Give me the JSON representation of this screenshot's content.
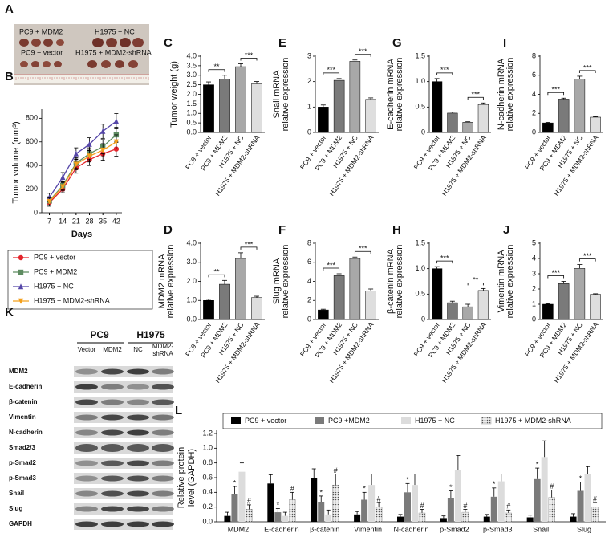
{
  "photo": {
    "panel": "A",
    "labels": [
      "PC9 + MDM2",
      "H1975 + NC",
      "PC9 + vector",
      "H1975 + MDM2-shRNA"
    ]
  },
  "blot": {
    "panel": "K",
    "groups": [
      "PC9",
      "H1975"
    ],
    "lanes": [
      [
        "Vector"
      ],
      [
        "MDM2"
      ],
      [
        "NC"
      ],
      [
        "MDM2-",
        "shRNA"
      ]
    ],
    "rows": [
      "MDM2",
      "E-cadherin",
      "β-catenin",
      "Vimentin",
      "N-cadherin",
      "Smad2/3",
      "p-Smad2",
      "p-Smad3",
      "Snail",
      "Slug",
      "GAPDH"
    ]
  },
  "chart_data": [
    {
      "type": "line",
      "panel": "B",
      "xlabel": "Days",
      "ylabel": "Tumor volume (mm³)",
      "x": [
        7,
        14,
        21,
        28,
        35,
        42
      ],
      "xlim": [
        3,
        45
      ],
      "xticks": [
        7,
        14,
        21,
        28,
        35,
        42
      ],
      "ylim": [
        0,
        850
      ],
      "yticks": [
        0,
        200,
        400,
        600,
        800
      ],
      "series": [
        {
          "name": "PC9 + vector",
          "color": "#e3242b",
          "marker": "circle",
          "values": [
            85,
            200,
            380,
            450,
            500,
            540
          ],
          "errors": [
            30,
            30,
            45,
            50,
            55,
            60
          ]
        },
        {
          "name": "PC9 + MDM2",
          "color": "#5e8c61",
          "marker": "square",
          "values": [
            100,
            230,
            420,
            500,
            560,
            660
          ],
          "errors": [
            35,
            35,
            45,
            50,
            60,
            65
          ]
        },
        {
          "name": "H1975 + NC",
          "color": "#5546a8",
          "marker": "triangle",
          "values": [
            130,
            300,
            500,
            580,
            690,
            775
          ],
          "errors": [
            35,
            40,
            50,
            55,
            60,
            65
          ]
        },
        {
          "name": "H1975 + MDM2-shRNA",
          "color": "#f4a01c",
          "marker": "triangle-down",
          "values": [
            95,
            220,
            410,
            480,
            530,
            600
          ],
          "errors": [
            30,
            35,
            45,
            50,
            55,
            60
          ]
        }
      ]
    },
    {
      "type": "bar",
      "panel": "C",
      "ylabel": [
        "Tumor weight (g)"
      ],
      "categories": [
        "PC9 + vector",
        "PC9 + MDM2",
        "H1975 + NC",
        "H1975 + MDM2-shRNA"
      ],
      "colors": [
        "#000000",
        "#7a7a7a",
        "#a8a8a8",
        "#dedede"
      ],
      "values": [
        2.5,
        2.8,
        3.45,
        2.55
      ],
      "errors": [
        0.15,
        0.2,
        0.15,
        0.12
      ],
      "ylim": [
        0,
        4
      ],
      "yticks": [
        {
          "value": 0,
          "label": "0.0"
        },
        {
          "value": 0.5,
          "label": "0.5"
        },
        {
          "value": 1,
          "label": "1.0"
        },
        {
          "value": 1.5,
          "label": "1.5"
        },
        {
          "value": 2,
          "label": "2.0"
        },
        {
          "value": 2.5,
          "label": "2.5"
        },
        {
          "value": 3,
          "label": "3.0"
        },
        {
          "value": 3.5,
          "label": "3.5"
        },
        {
          "value": 4,
          "label": "4.0"
        }
      ],
      "significance": [
        "**",
        "***"
      ]
    },
    {
      "type": "bar",
      "panel": "E",
      "ylabel": [
        "Snail mRNA",
        "relative expression"
      ],
      "categories": [
        "PC9 + vector",
        "PC9 + MDM2",
        "H1975 + NC",
        "H1975 + MDM2-shRNA"
      ],
      "colors": [
        "#000000",
        "#7a7a7a",
        "#a8a8a8",
        "#dedede"
      ],
      "values": [
        1.0,
        2.05,
        2.8,
        1.3
      ],
      "errors": [
        0.08,
        0.07,
        0.05,
        0.06
      ],
      "ylim": [
        0,
        3
      ],
      "yticks": [
        0,
        1,
        2,
        3
      ],
      "significance": [
        "***",
        "***"
      ]
    },
    {
      "type": "bar",
      "panel": "G",
      "ylabel": [
        "E-cadherin mRNA",
        "relative expression"
      ],
      "categories": [
        "PC9 + vector",
        "PC9 + MDM2",
        "H1975 + NC",
        "H1975 + MDM2-shRNA"
      ],
      "colors": [
        "#000000",
        "#7a7a7a",
        "#a8a8a8",
        "#dedede"
      ],
      "values": [
        1.0,
        0.38,
        0.2,
        0.55
      ],
      "errors": [
        0.06,
        0.02,
        0.01,
        0.03
      ],
      "ylim": [
        0,
        1.5
      ],
      "yticks": [
        0,
        0.5,
        {
          "value": 1,
          "label": "1.0"
        },
        1.5
      ],
      "significance": [
        "***",
        "***"
      ]
    },
    {
      "type": "bar",
      "panel": "I",
      "ylabel": [
        "N-cadherin mRNA",
        "relative expression"
      ],
      "categories": [
        "PC9 + vector",
        "PC9 + MDM2",
        "H1975 + NC",
        "H1975 + MDM2-shRNA"
      ],
      "colors": [
        "#000000",
        "#7a7a7a",
        "#a8a8a8",
        "#dedede"
      ],
      "values": [
        1.0,
        3.5,
        5.6,
        1.6
      ],
      "errors": [
        0.05,
        0.1,
        0.3,
        0.05
      ],
      "ylim": [
        0,
        8
      ],
      "yticks": [
        0,
        2,
        4,
        6,
        8
      ],
      "significance": [
        "***",
        "***"
      ]
    },
    {
      "type": "bar",
      "panel": "D",
      "ylabel": [
        "MDM2 mRNA",
        "relative expression"
      ],
      "categories": [
        "PC9 + vector",
        "PC9 + MDM2",
        "H1975 + NC",
        "H1975 + MDM2-shRNA"
      ],
      "colors": [
        "#000000",
        "#7a7a7a",
        "#a8a8a8",
        "#dedede"
      ],
      "values": [
        1.0,
        1.85,
        3.2,
        1.15
      ],
      "errors": [
        0.06,
        0.2,
        0.3,
        0.07
      ],
      "ylim": [
        0,
        4
      ],
      "yticks": [
        {
          "value": 0,
          "label": "0.0"
        },
        {
          "value": 1,
          "label": "1.0"
        },
        {
          "value": 2,
          "label": "2.0"
        },
        {
          "value": 3,
          "label": "3.0"
        },
        {
          "value": 4,
          "label": "4.0"
        }
      ],
      "significance": [
        "**",
        "***"
      ]
    },
    {
      "type": "bar",
      "panel": "F",
      "ylabel": [
        "Slug mRNA",
        "relative expression"
      ],
      "categories": [
        "PC9 + vector",
        "PC9 + MDM2",
        "H1975 + NC",
        "H1975 + MDM2-shRNA"
      ],
      "colors": [
        "#000000",
        "#7a7a7a",
        "#a8a8a8",
        "#dedede"
      ],
      "values": [
        1.0,
        4.6,
        6.4,
        3.0
      ],
      "errors": [
        0.08,
        0.2,
        0.15,
        0.2
      ],
      "ylim": [
        0,
        8
      ],
      "yticks": [
        0,
        2,
        4,
        6,
        8
      ],
      "significance": [
        "***",
        "***"
      ]
    },
    {
      "type": "bar",
      "panel": "H",
      "ylabel": [
        "β-catenin mRNA",
        "relative expression"
      ],
      "categories": [
        "PC9 + vector",
        "PC9 + MDM2",
        "H1975 + NC",
        "H1975 + MDM2-shRNA"
      ],
      "colors": [
        "#000000",
        "#7a7a7a",
        "#a8a8a8",
        "#dedede"
      ],
      "values": [
        1.0,
        0.33,
        0.25,
        0.57
      ],
      "errors": [
        0.04,
        0.03,
        0.05,
        0.04
      ],
      "ylim": [
        0,
        1.5
      ],
      "yticks": [
        0,
        0.5,
        {
          "value": 1,
          "label": "1.0"
        },
        1.5
      ],
      "significance": [
        "***",
        "**"
      ]
    },
    {
      "type": "bar",
      "panel": "J",
      "ylabel": [
        "Vimentin mRNA",
        "relative expression"
      ],
      "categories": [
        "PC9 + vector",
        "PC9 + MDM2",
        "H1975 + NC",
        "H1975 + MDM2-shRNA"
      ],
      "colors": [
        "#000000",
        "#7a7a7a",
        "#a8a8a8",
        "#dedede"
      ],
      "values": [
        1.0,
        2.35,
        3.35,
        1.65
      ],
      "errors": [
        0.03,
        0.15,
        0.25,
        0.04
      ],
      "ylim": [
        0,
        5
      ],
      "yticks": [
        0,
        1,
        2,
        3,
        4,
        5
      ],
      "significance": [
        "***",
        "***"
      ]
    },
    {
      "type": "grouped-bar",
      "panel": "L",
      "ylabel": [
        "Relative protein",
        "level (GAPDH)"
      ],
      "categories": [
        "MDM2",
        "E-cadherin",
        "β-catenin",
        "Vimentin",
        "N-cadherin",
        "p-Smad2",
        "p-Smad3",
        "Snail",
        "Slug"
      ],
      "ylim": [
        0,
        1.2
      ],
      "yticks": [
        {
          "value": 0,
          "label": "0.0"
        },
        {
          "value": 0.2,
          "label": "0.2"
        },
        {
          "value": 0.4,
          "label": "0.4"
        },
        {
          "value": 0.6,
          "label": "0.6"
        },
        {
          "value": 0.8,
          "label": "0.8"
        },
        {
          "value": 1,
          "label": "1.0"
        },
        {
          "value": 1.2,
          "label": "1.2"
        }
      ],
      "series": [
        {
          "name": "PC9 + vector",
          "color": "#000000",
          "values": [
            0.08,
            0.52,
            0.6,
            0.1,
            0.07,
            0.05,
            0.07,
            0.06,
            0.07
          ],
          "errors": [
            0.05,
            0.12,
            0.12,
            0.04,
            0.03,
            0.03,
            0.03,
            0.03,
            0.04
          ]
        },
        {
          "name": "PC9 +MDM2",
          "color": "#7a7a7a",
          "values": [
            0.38,
            0.13,
            0.27,
            0.3,
            0.4,
            0.32,
            0.34,
            0.58,
            0.42
          ],
          "errors": [
            0.1,
            0.05,
            0.08,
            0.1,
            0.12,
            0.1,
            0.12,
            0.15,
            0.12
          ],
          "marks": [
            "*",
            "*",
            "*",
            "*",
            "*",
            "*",
            "*",
            "*",
            "*"
          ]
        },
        {
          "name": "H1975 + NC",
          "color": "#dcdcdc",
          "values": [
            0.68,
            0.08,
            0.1,
            0.5,
            0.5,
            0.7,
            0.55,
            0.88,
            0.65
          ],
          "errors": [
            0.12,
            0.05,
            0.06,
            0.15,
            0.15,
            0.2,
            0.1,
            0.22,
            0.1
          ]
        },
        {
          "name": "H1975 + MDM2-shRNA",
          "color": "#9a9a9a",
          "hatch": true,
          "values": [
            0.17,
            0.3,
            0.5,
            0.2,
            0.12,
            0.13,
            0.12,
            0.33,
            0.2
          ],
          "errors": [
            0.06,
            0.1,
            0.15,
            0.06,
            0.05,
            0.04,
            0.04,
            0.1,
            0.06
          ],
          "marks": [
            "#",
            "#",
            "#",
            "#",
            "#",
            "#",
            "#",
            "#",
            "#"
          ]
        }
      ]
    }
  ]
}
